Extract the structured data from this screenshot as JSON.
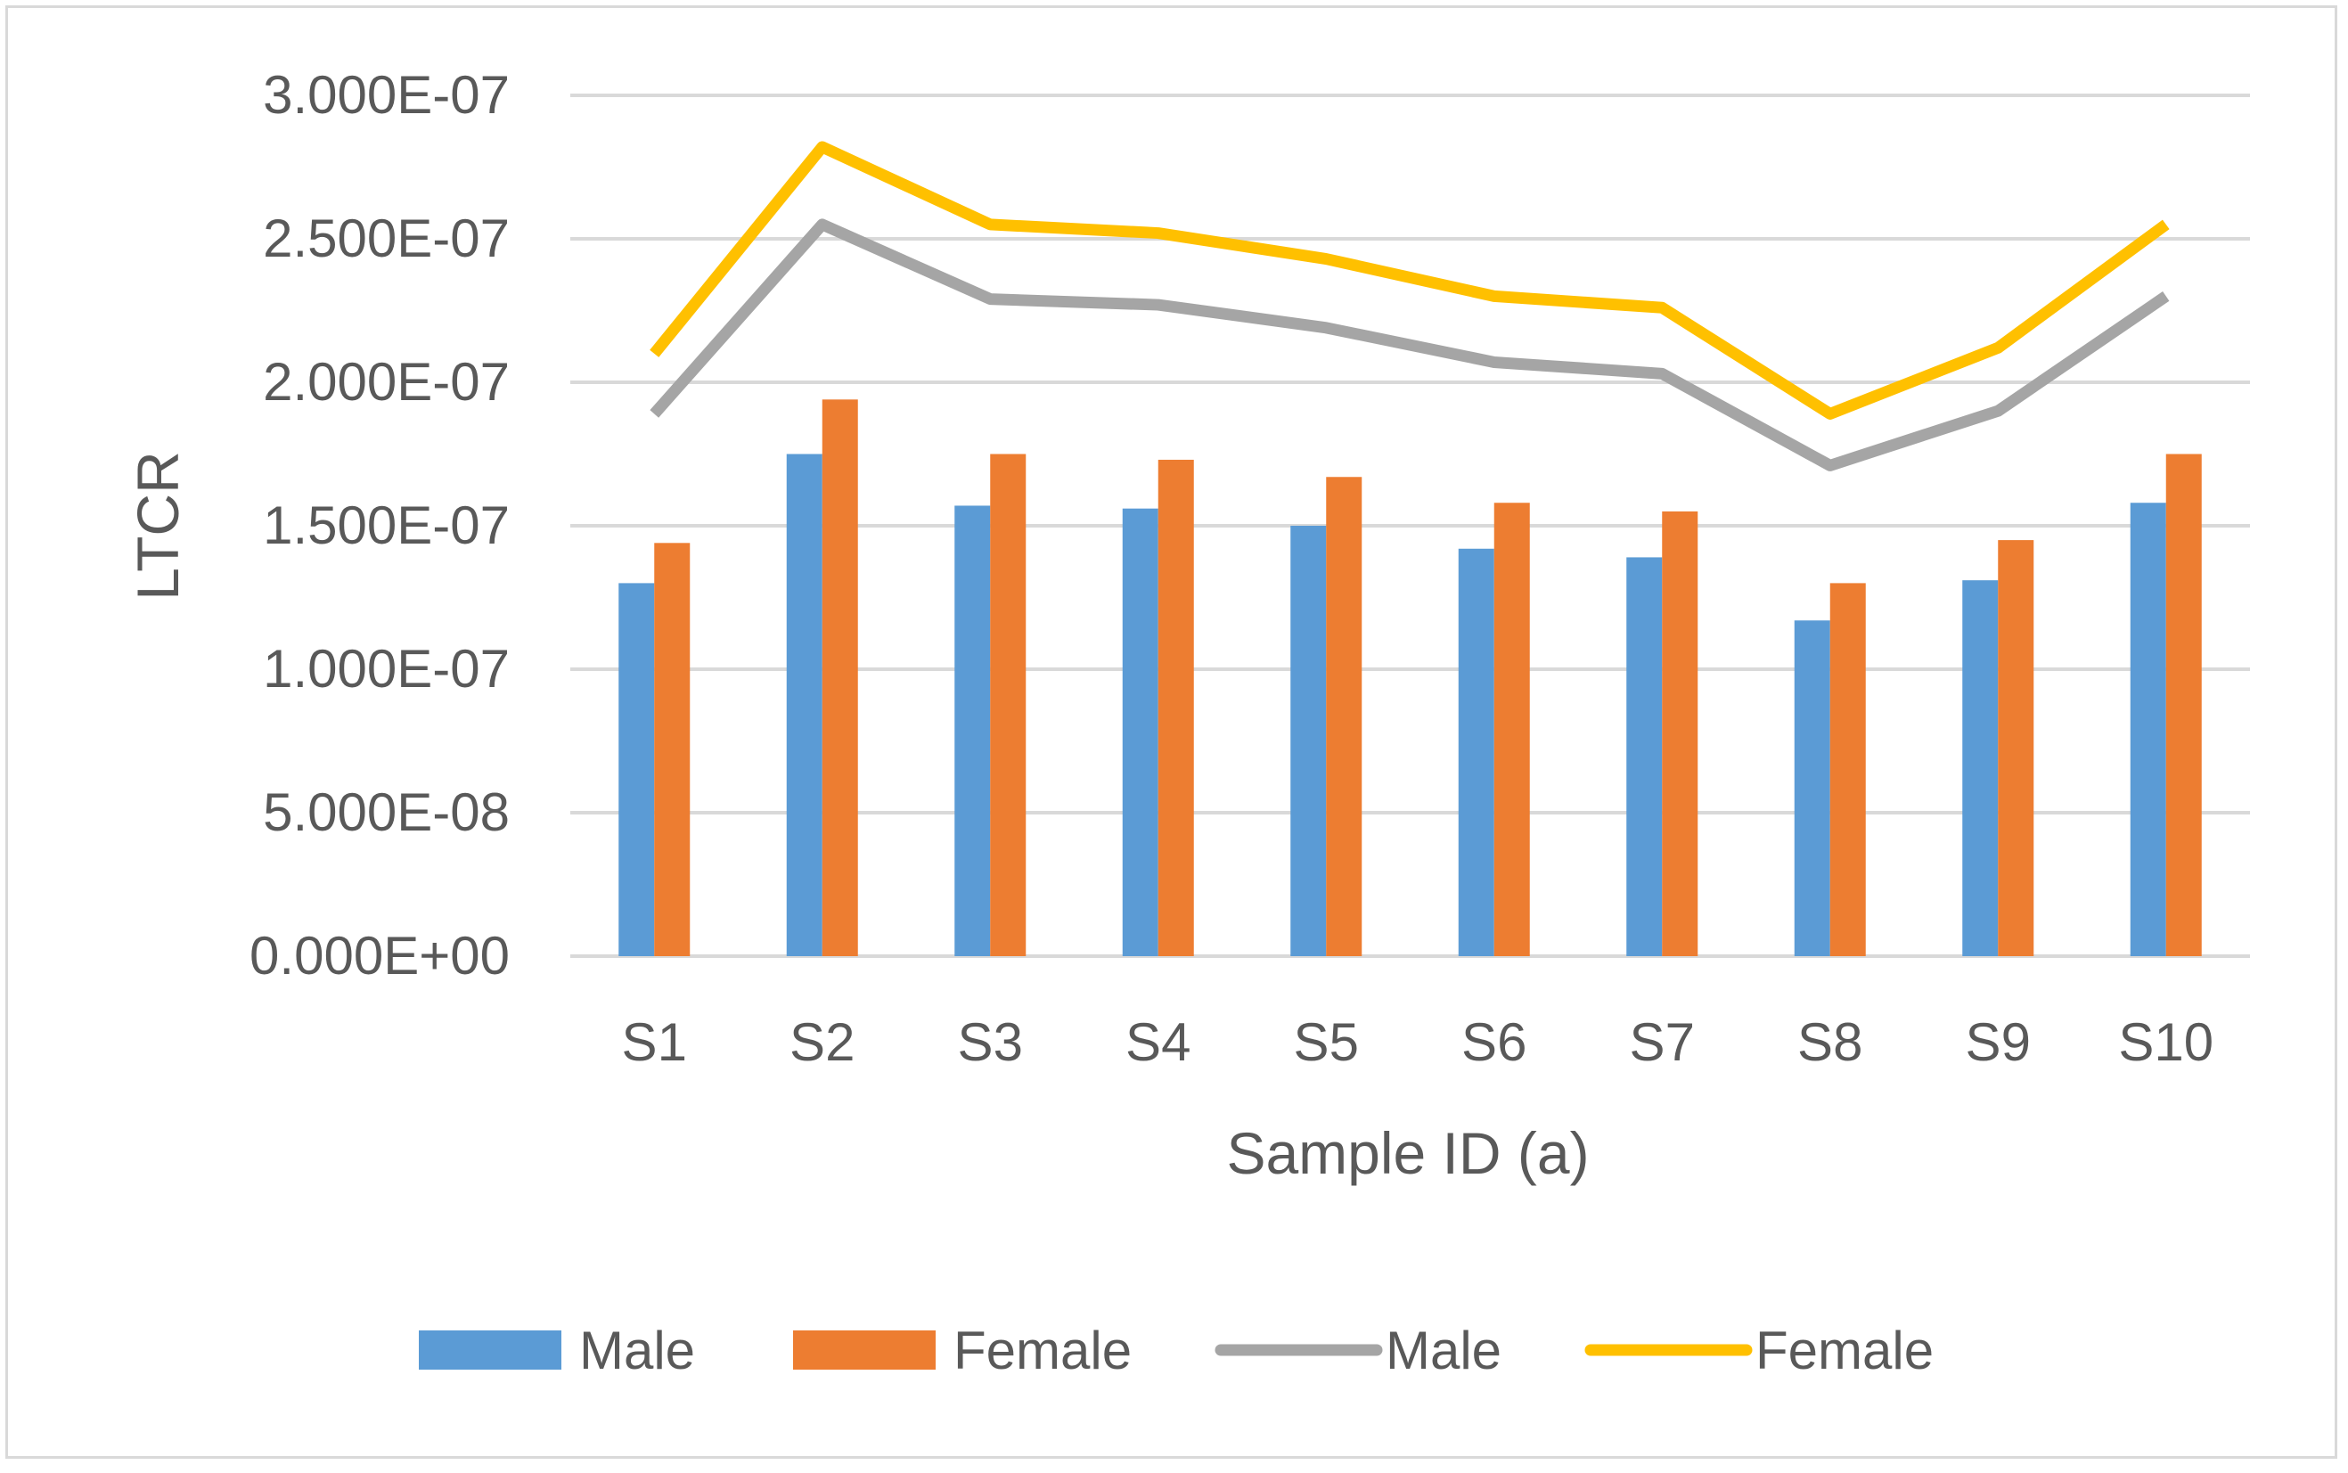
{
  "chart_data": {
    "type": "bar+line",
    "title": "",
    "xlabel": "Sample ID (a)",
    "ylabel": "LTCR",
    "categories": [
      "S1",
      "S2",
      "S3",
      "S4",
      "S5",
      "S6",
      "S7",
      "S8",
      "S9",
      "S10"
    ],
    "ylim": [
      0,
      3e-07
    ],
    "yticks": [
      0,
      5e-08,
      1e-07,
      1.5e-07,
      2e-07,
      2.5e-07,
      3e-07
    ],
    "ytick_labels": [
      "0.000E+00",
      "5.000E-08",
      "1.000E-07",
      "1.500E-07",
      "2.000E-07",
      "2.500E-07",
      "3.000E-07"
    ],
    "grid": true,
    "legend_position": "bottom",
    "series": [
      {
        "name": "Male",
        "kind": "bar",
        "color": "#5b9bd5",
        "values": [
          1.3e-07,
          1.75e-07,
          1.57e-07,
          1.56e-07,
          1.5e-07,
          1.42e-07,
          1.39e-07,
          1.17e-07,
          1.31e-07,
          1.58e-07
        ]
      },
      {
        "name": "Female",
        "kind": "bar",
        "color": "#ed7d31",
        "values": [
          1.44e-07,
          1.94e-07,
          1.75e-07,
          1.73e-07,
          1.67e-07,
          1.58e-07,
          1.55e-07,
          1.3e-07,
          1.45e-07,
          1.75e-07
        ]
      },
      {
        "name": "Male",
        "kind": "line",
        "color": "#a5a5a5",
        "values": [
          1.89e-07,
          2.55e-07,
          2.29e-07,
          2.27e-07,
          2.19e-07,
          2.07e-07,
          2.03e-07,
          1.71e-07,
          1.9e-07,
          2.3e-07
        ]
      },
      {
        "name": "Female",
        "kind": "line",
        "color": "#ffc000",
        "values": [
          2.1e-07,
          2.82e-07,
          2.55e-07,
          2.52e-07,
          2.43e-07,
          2.3e-07,
          2.26e-07,
          1.89e-07,
          2.12e-07,
          2.55e-07
        ]
      }
    ]
  }
}
